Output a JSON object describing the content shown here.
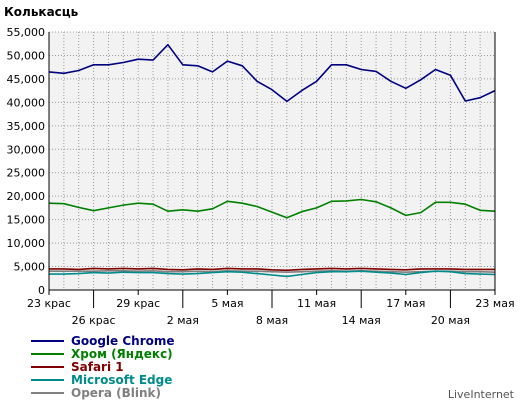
{
  "chart_data": {
    "type": "line",
    "title": "Колькасць",
    "ylim": [
      0,
      55000
    ],
    "y_ticks": [
      "0",
      "5,000",
      "10,000",
      "15,000",
      "20,000",
      "25,000",
      "30,000",
      "35,000",
      "40,000",
      "45,000",
      "50,000",
      "55,000"
    ],
    "x": [
      "23 крас",
      "24 крас",
      "25 крас",
      "26 крас",
      "27 крас",
      "28 крас",
      "29 крас",
      "30 крас",
      "1 мая",
      "2 мая",
      "3 мая",
      "4 мая",
      "5 мая",
      "6 мая",
      "7 мая",
      "8 мая",
      "9 мая",
      "10 мая",
      "11 мая",
      "12 мая",
      "13 мая",
      "14 мая",
      "15 мая",
      "16 мая",
      "17 мая",
      "18 мая",
      "19 мая",
      "20 мая",
      "21 мая",
      "22 мая",
      "23 мая"
    ],
    "x_tick_labels_row1": [
      "23 крас",
      "29 крас",
      "5 мая",
      "11 мая",
      "17 мая",
      "23 мая"
    ],
    "x_tick_labels_row2": [
      "26 крас",
      "2 мая",
      "8 мая",
      "14 мая",
      "20 мая"
    ],
    "grid": true,
    "series": [
      {
        "name": "Google Chrome",
        "color": "#000080",
        "values": [
          46500,
          46200,
          46800,
          48000,
          48000,
          48500,
          49200,
          49000,
          52300,
          48000,
          47800,
          46500,
          48800,
          47800,
          44500,
          42700,
          40200,
          42500,
          44500,
          48000,
          48000,
          47000,
          46600,
          44500,
          43000,
          44800,
          47000,
          45800,
          40300,
          41000,
          42500
        ]
      },
      {
        "name": "Хром (Яндекс)",
        "color": "#008000",
        "values": [
          18500,
          18400,
          17600,
          16900,
          17500,
          18100,
          18500,
          18300,
          16800,
          17100,
          16800,
          17300,
          18900,
          18500,
          17800,
          16600,
          15400,
          16700,
          17500,
          18900,
          19000,
          19300,
          18800,
          17500,
          15900,
          16500,
          18700,
          18700,
          18300,
          17000,
          16800
        ]
      },
      {
        "name": "Safari 1",
        "color": "#800000",
        "values": [
          4500,
          4500,
          4400,
          4600,
          4500,
          4600,
          4500,
          4600,
          4400,
          4300,
          4500,
          4400,
          4600,
          4500,
          4500,
          4300,
          4200,
          4400,
          4500,
          4600,
          4500,
          4600,
          4500,
          4400,
          4300,
          4500,
          4500,
          4500,
          4400,
          4400,
          4400
        ]
      },
      {
        "name": "Microsoft Edge",
        "color": "#008b8b",
        "values": [
          3400,
          3400,
          3500,
          3700,
          3600,
          3800,
          3700,
          3700,
          3500,
          3400,
          3500,
          3700,
          3900,
          3800,
          3500,
          3200,
          2900,
          3300,
          3700,
          3900,
          3900,
          4000,
          3800,
          3600,
          3300,
          3700,
          4000,
          3900,
          3500,
          3400,
          3300
        ]
      },
      {
        "name": "Opera (Blink)",
        "color": "#808080",
        "values": [
          4000,
          4000,
          4000,
          4000,
          4100,
          4100,
          4000,
          4100,
          3900,
          3900,
          4000,
          3900,
          4100,
          4000,
          4000,
          3900,
          3800,
          3900,
          4000,
          4100,
          4000,
          4100,
          4000,
          3900,
          3800,
          3900,
          4000,
          4000,
          3900,
          3900,
          3800
        ]
      }
    ],
    "legend_position": "bottom-left"
  },
  "brand": "LiveInternet"
}
